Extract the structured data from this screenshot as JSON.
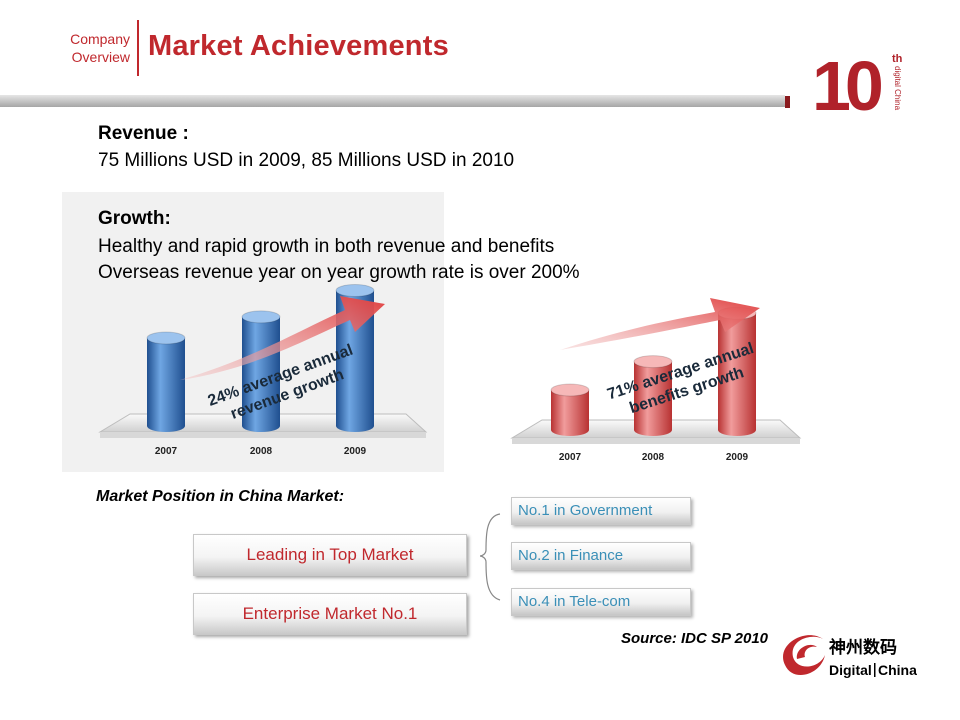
{
  "header": {
    "section_line1": "Company",
    "section_line2": "Overview",
    "title": "Market Achievements",
    "anniversary_number": "10",
    "anniversary_suffix": "th",
    "anniversary_caption": "digital China"
  },
  "revenue": {
    "heading": "Revenue :",
    "text": "75 Millions USD in 2009, 85 Millions USD in 2010"
  },
  "growth": {
    "heading": "Growth:",
    "line1": "Healthy and rapid growth in both revenue and benefits",
    "line2": "Overseas revenue year on year growth rate is over 200%"
  },
  "chart_data": [
    {
      "type": "bar",
      "categories": [
        "2007",
        "2008",
        "2009"
      ],
      "values": [
        1.0,
        1.24,
        1.54
      ],
      "annotation_line1": "24% average annual",
      "annotation_line2": "revenue growth",
      "bar_color": "#3f7fc8"
    },
    {
      "type": "bar",
      "categories": [
        "2007",
        "2008",
        "2009"
      ],
      "values": [
        1.0,
        1.71,
        2.92
      ],
      "annotation_line1": "71% average annual",
      "annotation_line2": "benefits growth",
      "bar_color": "#e06060"
    }
  ],
  "market": {
    "heading": "Market Position in China Market:",
    "left_buttons": [
      "Leading in Top Market",
      "Enterprise Market No.1"
    ],
    "right_items": [
      "No.1 in Government",
      "No.2 in Finance",
      "No.4 in Tele-com"
    ]
  },
  "source": "Source: IDC SP 2010",
  "company_logo": {
    "chinese": "神州数码",
    "english_left": "Digital",
    "english_right": "China"
  },
  "colors": {
    "accent": "#c0282d",
    "link_blue": "#3a8fb7"
  }
}
